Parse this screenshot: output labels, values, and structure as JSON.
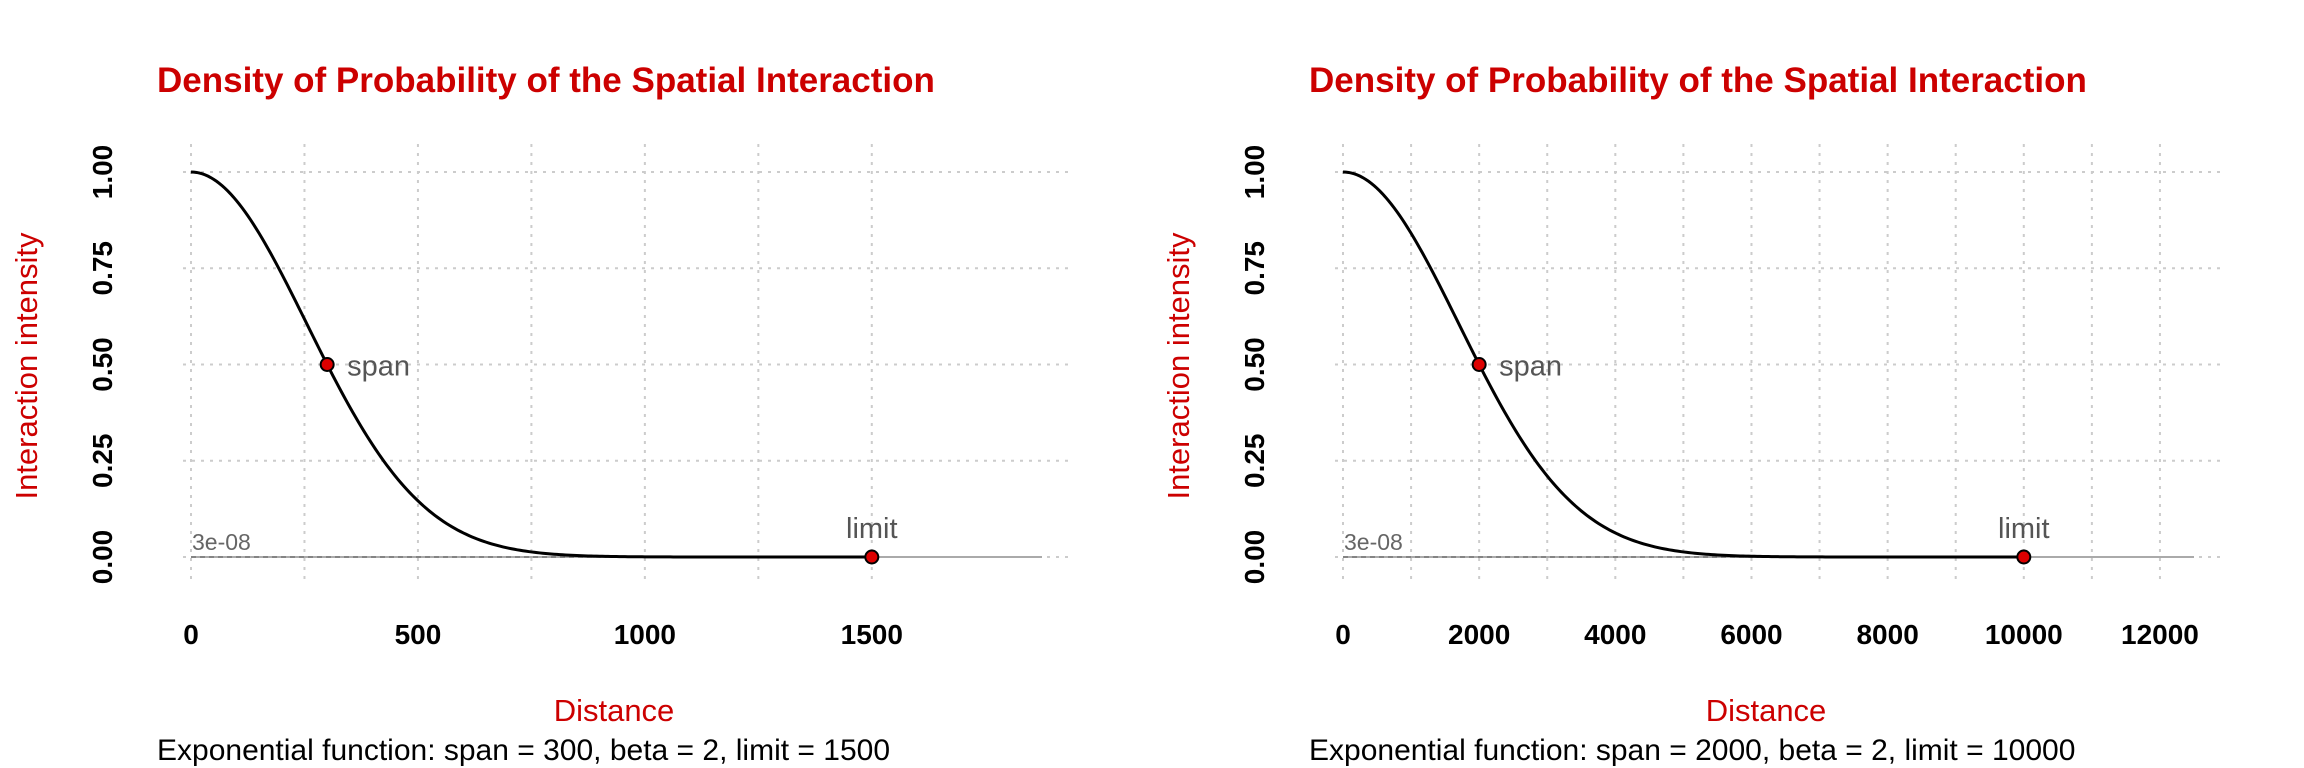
{
  "colors": {
    "title": "#cc0000",
    "axis_label": "#cc0000",
    "curve": "#000000",
    "point_fill": "#dd0000",
    "baseline": "#aaaaaa",
    "grid": "#cccccc",
    "annotation": "#555555"
  },
  "chart_data": [
    {
      "type": "line",
      "title": "Density of Probability of the Spatial Interaction",
      "xlabel": "Distance",
      "ylabel": "Interaction intensity",
      "caption": "Exponential function: span = 300, beta = 2, limit = 1500",
      "function": {
        "kind": "exponential",
        "span": 300,
        "beta": 2,
        "limit": 1500
      },
      "xlim": [
        0,
        1875
      ],
      "ylim": [
        0,
        1
      ],
      "x_ticks": [
        0,
        500,
        1000,
        1500
      ],
      "x_tick_labels": [
        "0",
        "500",
        "1000",
        "1500"
      ],
      "y_ticks": [
        0,
        0.25,
        0.5,
        0.75,
        1
      ],
      "y_tick_labels": [
        "0.00",
        "0.25",
        "0.50",
        "0.75",
        "1.00"
      ],
      "grid": true,
      "legend": "none",
      "points": [
        {
          "label": "span",
          "x": 300,
          "y": 0.5
        },
        {
          "label": "limit",
          "x": 1500,
          "y": 0
        }
      ],
      "min_value_label": "3e-08"
    },
    {
      "type": "line",
      "title": "Density of Probability of the Spatial Interaction",
      "xlabel": "Distance",
      "ylabel": "Interaction intensity",
      "caption": "Exponential function: span = 2000, beta = 2, limit = 10000",
      "function": {
        "kind": "exponential",
        "span": 2000,
        "beta": 2,
        "limit": 10000
      },
      "xlim": [
        0,
        12500
      ],
      "ylim": [
        0,
        1
      ],
      "x_ticks": [
        0,
        2000,
        4000,
        6000,
        8000,
        10000,
        12000
      ],
      "x_tick_labels": [
        "0",
        "2000",
        "4000",
        "6000",
        "8000",
        "10000",
        "12000"
      ],
      "y_ticks": [
        0,
        0.25,
        0.5,
        0.75,
        1
      ],
      "y_tick_labels": [
        "0.00",
        "0.25",
        "0.50",
        "0.75",
        "1.00"
      ],
      "grid": true,
      "legend": "none",
      "points": [
        {
          "label": "span",
          "x": 2000,
          "y": 0.5
        },
        {
          "label": "limit",
          "x": 10000,
          "y": 0
        }
      ],
      "min_value_label": "3e-08"
    }
  ]
}
